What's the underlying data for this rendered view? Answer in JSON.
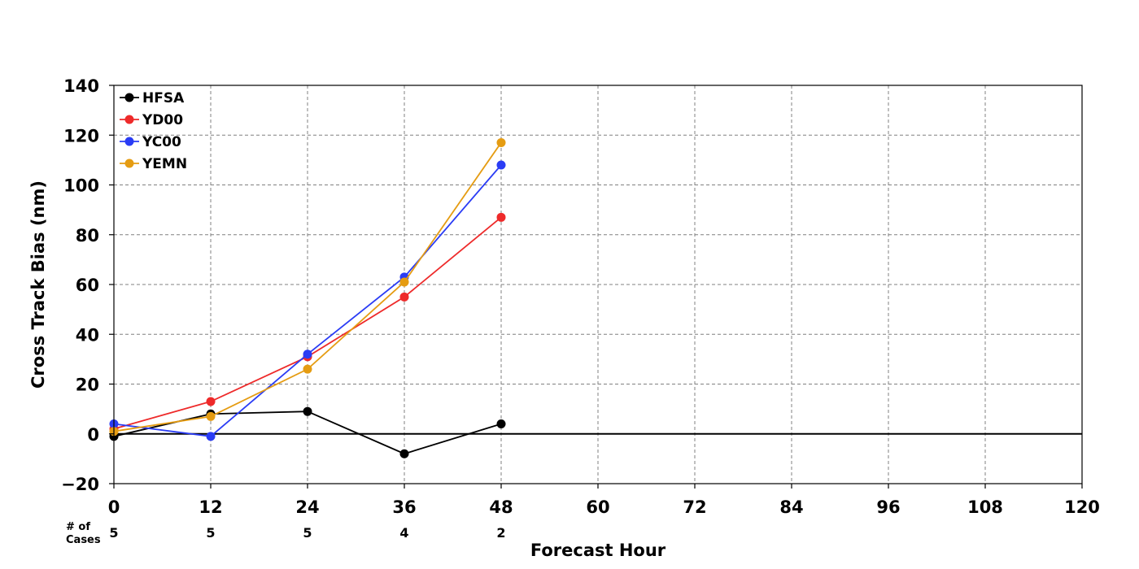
{
  "chart_data": {
    "type": "line",
    "title": "",
    "xlabel": "Forecast Hour",
    "ylabel": "Cross Track Bias (nm)",
    "xlim": [
      0,
      120
    ],
    "ylim": [
      -20,
      140
    ],
    "x_ticks": [
      0,
      12,
      24,
      36,
      48,
      60,
      72,
      84,
      96,
      108,
      120
    ],
    "y_ticks": [
      -20,
      0,
      20,
      40,
      60,
      80,
      100,
      120,
      140
    ],
    "y_tick_labels": [
      "−20",
      "0",
      "20",
      "40",
      "60",
      "80",
      "100",
      "120",
      "140"
    ],
    "grid": true,
    "legend_position": "top-left",
    "cases_label": "# of\nCases",
    "cases": [
      {
        "x": 0,
        "n": "5"
      },
      {
        "x": 12,
        "n": "5"
      },
      {
        "x": 24,
        "n": "5"
      },
      {
        "x": 36,
        "n": "4"
      },
      {
        "x": 48,
        "n": "2"
      }
    ],
    "x": [
      0,
      12,
      24,
      36,
      48
    ],
    "series": [
      {
        "name": "HFSA",
        "color": "#000000",
        "values": [
          -1,
          8,
          9,
          -8,
          4
        ]
      },
      {
        "name": "YD00",
        "color": "#ee2a2a",
        "values": [
          2,
          13,
          31,
          55,
          87
        ]
      },
      {
        "name": "YC00",
        "color": "#2a3cf5",
        "values": [
          4,
          -1,
          32,
          63,
          108
        ]
      },
      {
        "name": "YEMN",
        "color": "#e59c12",
        "values": [
          1,
          7,
          26,
          61,
          117
        ]
      }
    ]
  }
}
